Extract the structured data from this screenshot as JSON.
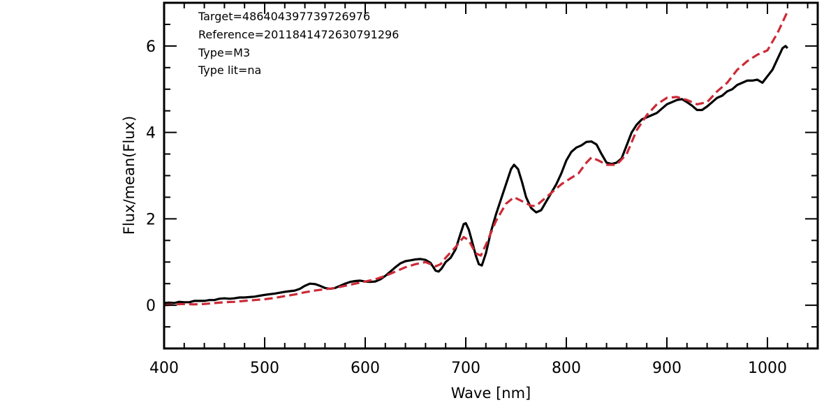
{
  "chart_data": {
    "type": "line",
    "title": "",
    "xlabel": "Wave [nm]",
    "ylabel": "Flux/mean(Flux)",
    "xlim": [
      400,
      1050
    ],
    "ylim": [
      -1,
      7
    ],
    "x_ticks": [
      400,
      500,
      600,
      700,
      800,
      900,
      1000
    ],
    "y_ticks": [
      0,
      2,
      4,
      6
    ],
    "x_minor_step": 20,
    "y_minor_step": 0.5,
    "grid": false,
    "legend": "none",
    "annotations": [
      "Target=486404397739726976",
      "Reference=2011841472630791296",
      "Type=M3",
      "Type lit=na"
    ],
    "series": [
      {
        "color": "#000000",
        "dash": "solid",
        "points": [
          [
            400,
            0.05
          ],
          [
            405,
            0.06
          ],
          [
            410,
            0.05
          ],
          [
            415,
            0.08
          ],
          [
            420,
            0.07
          ],
          [
            425,
            0.07
          ],
          [
            430,
            0.1
          ],
          [
            435,
            0.1
          ],
          [
            440,
            0.1
          ],
          [
            445,
            0.12
          ],
          [
            450,
            0.12
          ],
          [
            455,
            0.15
          ],
          [
            460,
            0.16
          ],
          [
            465,
            0.15
          ],
          [
            470,
            0.16
          ],
          [
            475,
            0.18
          ],
          [
            480,
            0.18
          ],
          [
            485,
            0.19
          ],
          [
            490,
            0.2
          ],
          [
            495,
            0.22
          ],
          [
            500,
            0.24
          ],
          [
            510,
            0.27
          ],
          [
            520,
            0.31
          ],
          [
            530,
            0.34
          ],
          [
            535,
            0.38
          ],
          [
            540,
            0.45
          ],
          [
            545,
            0.5
          ],
          [
            550,
            0.49
          ],
          [
            555,
            0.45
          ],
          [
            560,
            0.4
          ],
          [
            565,
            0.38
          ],
          [
            570,
            0.4
          ],
          [
            575,
            0.45
          ],
          [
            580,
            0.5
          ],
          [
            585,
            0.54
          ],
          [
            590,
            0.56
          ],
          [
            595,
            0.57
          ],
          [
            600,
            0.55
          ],
          [
            605,
            0.54
          ],
          [
            610,
            0.55
          ],
          [
            615,
            0.6
          ],
          [
            620,
            0.68
          ],
          [
            625,
            0.78
          ],
          [
            630,
            0.88
          ],
          [
            635,
            0.97
          ],
          [
            640,
            1.02
          ],
          [
            645,
            1.04
          ],
          [
            650,
            1.06
          ],
          [
            655,
            1.07
          ],
          [
            660,
            1.05
          ],
          [
            665,
            0.98
          ],
          [
            670,
            0.8
          ],
          [
            673,
            0.78
          ],
          [
            676,
            0.85
          ],
          [
            680,
            1.0
          ],
          [
            685,
            1.1
          ],
          [
            690,
            1.3
          ],
          [
            694,
            1.6
          ],
          [
            698,
            1.88
          ],
          [
            700,
            1.9
          ],
          [
            703,
            1.75
          ],
          [
            706,
            1.5
          ],
          [
            710,
            1.15
          ],
          [
            713,
            0.95
          ],
          [
            716,
            0.92
          ],
          [
            720,
            1.2
          ],
          [
            725,
            1.7
          ],
          [
            730,
            2.1
          ],
          [
            735,
            2.45
          ],
          [
            740,
            2.8
          ],
          [
            745,
            3.15
          ],
          [
            748,
            3.25
          ],
          [
            752,
            3.15
          ],
          [
            756,
            2.85
          ],
          [
            760,
            2.5
          ],
          [
            765,
            2.25
          ],
          [
            770,
            2.15
          ],
          [
            775,
            2.2
          ],
          [
            780,
            2.4
          ],
          [
            785,
            2.6
          ],
          [
            790,
            2.8
          ],
          [
            795,
            3.05
          ],
          [
            800,
            3.35
          ],
          [
            805,
            3.55
          ],
          [
            810,
            3.65
          ],
          [
            815,
            3.7
          ],
          [
            820,
            3.78
          ],
          [
            825,
            3.79
          ],
          [
            830,
            3.72
          ],
          [
            835,
            3.5
          ],
          [
            840,
            3.3
          ],
          [
            845,
            3.27
          ],
          [
            850,
            3.3
          ],
          [
            855,
            3.4
          ],
          [
            860,
            3.7
          ],
          [
            865,
            4.0
          ],
          [
            870,
            4.18
          ],
          [
            875,
            4.3
          ],
          [
            880,
            4.35
          ],
          [
            885,
            4.4
          ],
          [
            890,
            4.45
          ],
          [
            895,
            4.55
          ],
          [
            900,
            4.65
          ],
          [
            905,
            4.7
          ],
          [
            910,
            4.75
          ],
          [
            915,
            4.77
          ],
          [
            920,
            4.7
          ],
          [
            925,
            4.62
          ],
          [
            930,
            4.52
          ],
          [
            935,
            4.52
          ],
          [
            940,
            4.6
          ],
          [
            945,
            4.7
          ],
          [
            950,
            4.8
          ],
          [
            955,
            4.85
          ],
          [
            960,
            4.95
          ],
          [
            965,
            5.0
          ],
          [
            970,
            5.1
          ],
          [
            975,
            5.15
          ],
          [
            980,
            5.2
          ],
          [
            985,
            5.2
          ],
          [
            990,
            5.22
          ],
          [
            995,
            5.15
          ],
          [
            1000,
            5.3
          ],
          [
            1005,
            5.45
          ],
          [
            1010,
            5.7
          ],
          [
            1015,
            5.95
          ],
          [
            1018,
            6.0
          ],
          [
            1020,
            5.95
          ]
        ]
      },
      {
        "color": "#cc2a36",
        "dash": "dashed",
        "points": [
          [
            400,
            0.0
          ],
          [
            410,
            0.02
          ],
          [
            420,
            0.03
          ],
          [
            430,
            0.02
          ],
          [
            440,
            0.03
          ],
          [
            450,
            0.05
          ],
          [
            460,
            0.07
          ],
          [
            470,
            0.08
          ],
          [
            480,
            0.1
          ],
          [
            490,
            0.12
          ],
          [
            500,
            0.14
          ],
          [
            510,
            0.17
          ],
          [
            520,
            0.21
          ],
          [
            530,
            0.25
          ],
          [
            540,
            0.3
          ],
          [
            550,
            0.34
          ],
          [
            560,
            0.37
          ],
          [
            570,
            0.4
          ],
          [
            580,
            0.45
          ],
          [
            590,
            0.5
          ],
          [
            600,
            0.55
          ],
          [
            610,
            0.6
          ],
          [
            620,
            0.68
          ],
          [
            630,
            0.78
          ],
          [
            640,
            0.88
          ],
          [
            650,
            0.95
          ],
          [
            660,
            1.0
          ],
          [
            670,
            0.9
          ],
          [
            675,
            0.95
          ],
          [
            680,
            1.1
          ],
          [
            690,
            1.35
          ],
          [
            698,
            1.58
          ],
          [
            703,
            1.5
          ],
          [
            710,
            1.2
          ],
          [
            715,
            1.15
          ],
          [
            720,
            1.4
          ],
          [
            730,
            1.95
          ],
          [
            740,
            2.35
          ],
          [
            748,
            2.5
          ],
          [
            755,
            2.42
          ],
          [
            765,
            2.3
          ],
          [
            770,
            2.3
          ],
          [
            775,
            2.4
          ],
          [
            785,
            2.6
          ],
          [
            795,
            2.8
          ],
          [
            805,
            2.95
          ],
          [
            812,
            3.05
          ],
          [
            820,
            3.3
          ],
          [
            825,
            3.42
          ],
          [
            832,
            3.35
          ],
          [
            840,
            3.25
          ],
          [
            850,
            3.25
          ],
          [
            860,
            3.5
          ],
          [
            870,
            4.05
          ],
          [
            880,
            4.4
          ],
          [
            890,
            4.65
          ],
          [
            900,
            4.8
          ],
          [
            910,
            4.82
          ],
          [
            920,
            4.75
          ],
          [
            930,
            4.65
          ],
          [
            940,
            4.7
          ],
          [
            950,
            4.95
          ],
          [
            960,
            5.15
          ],
          [
            970,
            5.45
          ],
          [
            980,
            5.65
          ],
          [
            990,
            5.8
          ],
          [
            1000,
            5.9
          ],
          [
            1010,
            6.3
          ],
          [
            1020,
            6.8
          ]
        ]
      }
    ]
  }
}
